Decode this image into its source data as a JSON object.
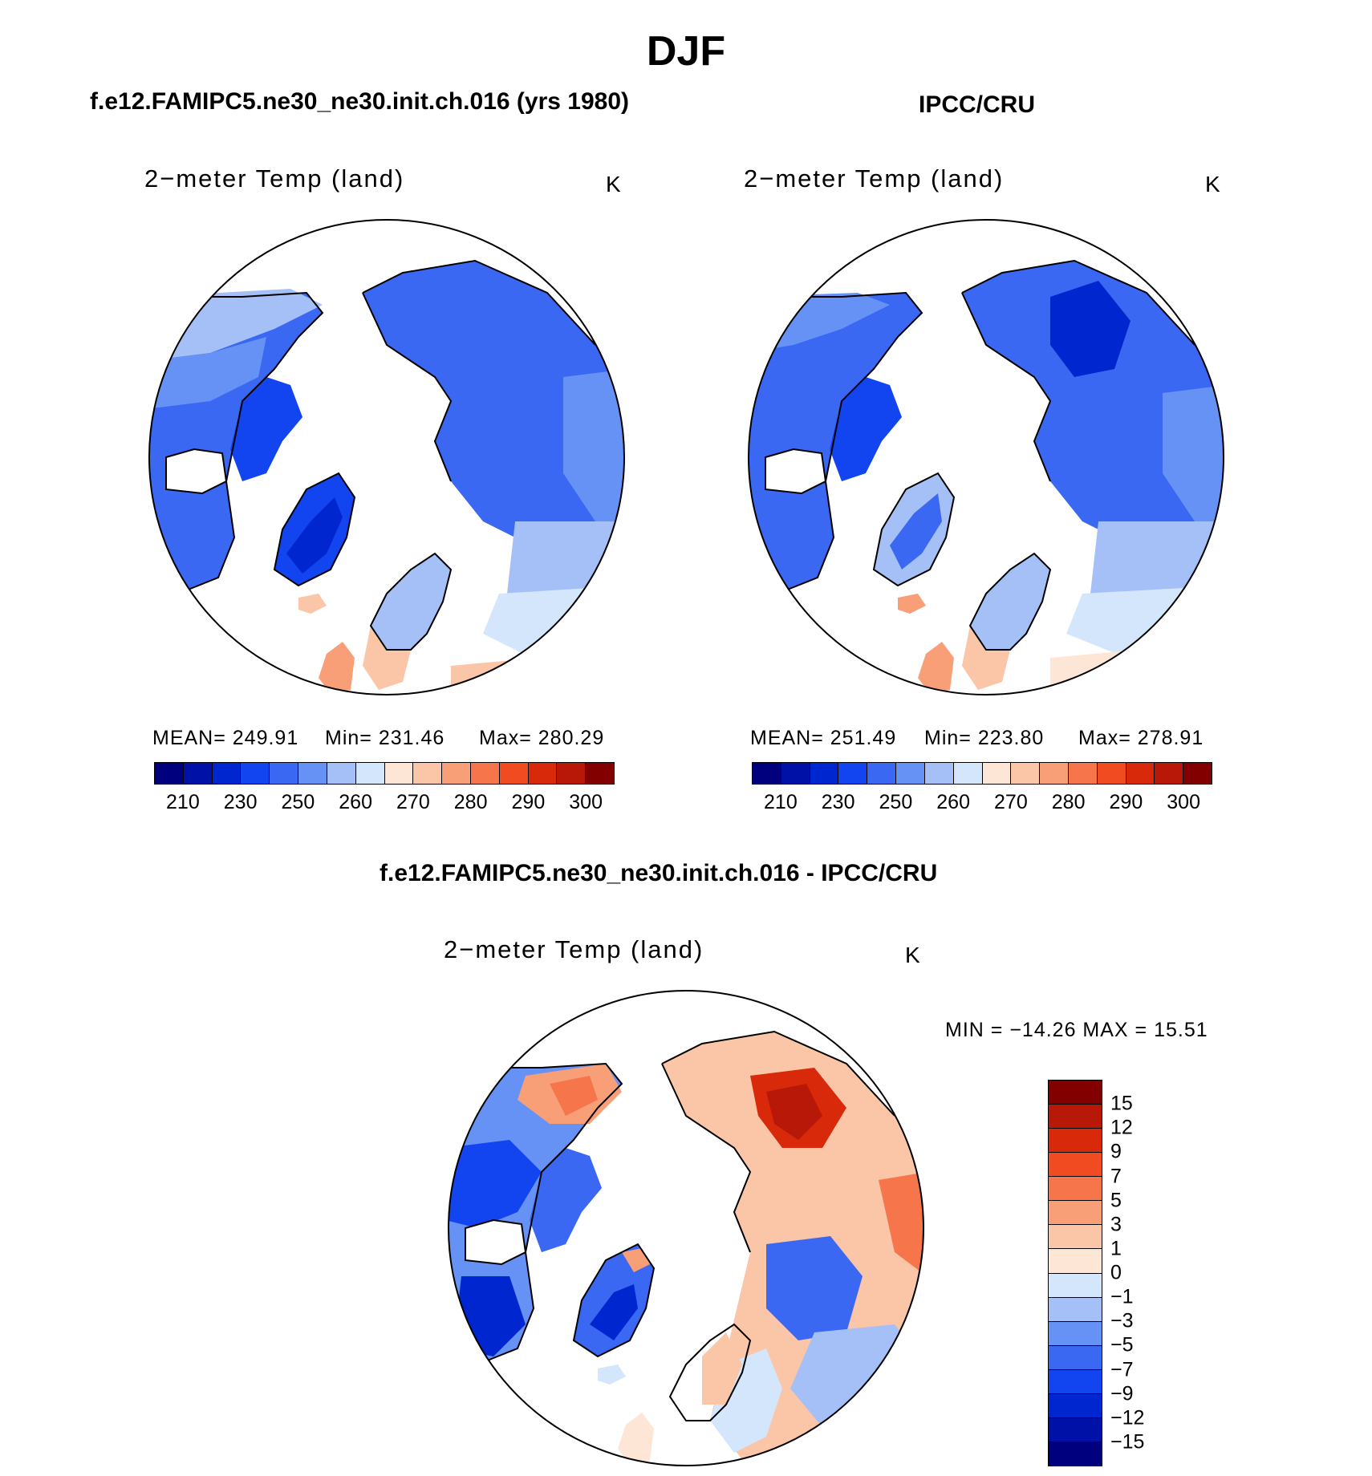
{
  "header": {
    "title": "DJF"
  },
  "panels": [
    {
      "title": "f.e12.FAMIPC5.ne30_ne30.init.ch.016 (yrs 1980)",
      "variable": "2−meter Temp (land)",
      "units": "K",
      "stats": {
        "mean": "MEAN= 249.91",
        "min": "Min= 231.46",
        "max": "Max= 280.29"
      }
    },
    {
      "title": "IPCC/CRU",
      "variable": "2−meter Temp (land)",
      "units": "K",
      "stats": {
        "mean": "MEAN= 251.49",
        "min": "Min= 223.80",
        "max": "Max= 278.91"
      }
    },
    {
      "title": "f.e12.FAMIPC5.ne30_ne30.init.ch.016 - IPCC/CRU",
      "variable": "2−meter Temp (land)",
      "units": "K",
      "stats": {
        "minmax": "MIN = −14.26 MAX =   15.51"
      }
    }
  ],
  "colorbar_abs": {
    "colors": [
      "#00007f",
      "#0011a8",
      "#0026cf",
      "#1244ef",
      "#3a68f2",
      "#6692f5",
      "#a4c0f7",
      "#d3e6fb",
      "#fde6d6",
      "#fbc5a7",
      "#f99f78",
      "#f6754a",
      "#f04b21",
      "#d82a0a",
      "#b81808",
      "#820000"
    ],
    "labels": [
      "210",
      "230",
      "250",
      "260",
      "270",
      "280",
      "290",
      "300"
    ]
  },
  "colorbar_diff": {
    "colors": [
      "#820000",
      "#b81808",
      "#d82a0a",
      "#f04b21",
      "#f6754a",
      "#f99f78",
      "#fbc5a7",
      "#fde6d6",
      "#d3e6fb",
      "#a4c0f7",
      "#6692f5",
      "#3a68f2",
      "#1244ef",
      "#0026cf",
      "#0011a8",
      "#00007f"
    ],
    "labels": [
      "15",
      "12",
      "9",
      "7",
      "5",
      "3",
      "1",
      "0",
      "−1",
      "−3",
      "−5",
      "−7",
      "−9",
      "−12",
      "−15"
    ]
  }
}
